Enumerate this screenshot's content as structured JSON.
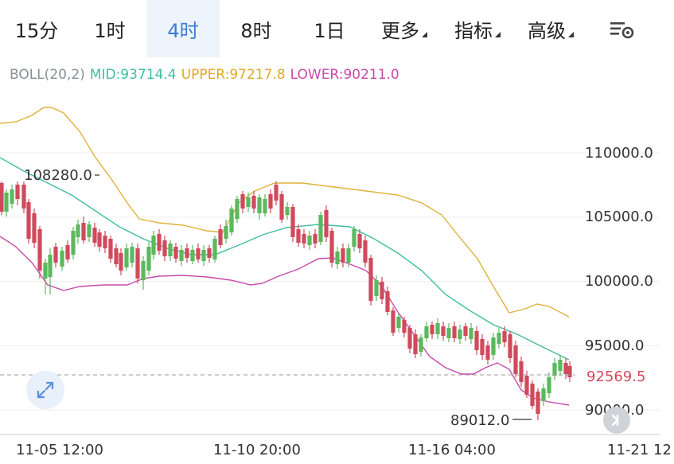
{
  "timeframes": [
    {
      "label": "15分",
      "active": false
    },
    {
      "label": "1时",
      "active": false
    },
    {
      "label": "4时",
      "active": true
    },
    {
      "label": "8时",
      "active": false
    },
    {
      "label": "1日",
      "active": false
    }
  ],
  "menus": [
    {
      "label": "更多"
    },
    {
      "label": "指标"
    },
    {
      "label": "高级"
    }
  ],
  "settings_icon": "chart-settings-icon",
  "indicator": {
    "name": "BOLL(20,2)",
    "mid": "MID:93714.4",
    "upper": "UPPER:97217.8",
    "lower": "LOWER:90211.0"
  },
  "colors": {
    "mid": "#3dbf9c",
    "upper": "#e0b23a",
    "lower": "#c94aa9",
    "up": "#5cb85c",
    "down": "#d04a5c",
    "active_tab": "#3a7bd5"
  },
  "y_axis_labels": [
    "110000.0",
    "105000.0",
    "100000.0",
    "95000.0",
    "90000.0"
  ],
  "x_axis_labels": [
    "11-05 12:00",
    "11-10 20:00",
    "11-16 04:00",
    "11-21 12"
  ],
  "annotations": {
    "high": "108280.0",
    "low": "89012.0"
  },
  "last_price": "92569.5",
  "chart_data": {
    "type": "candlestick",
    "x_range": [
      "11-05",
      "11-21"
    ],
    "y_range": [
      89000,
      112000
    ],
    "last_price": 92569.5,
    "high": 108280.0,
    "low": 89012.0,
    "bollinger": {
      "period": 20,
      "k": 2,
      "mid": 93714.4,
      "upper": 97217.8,
      "lower": 90211.0
    }
  }
}
